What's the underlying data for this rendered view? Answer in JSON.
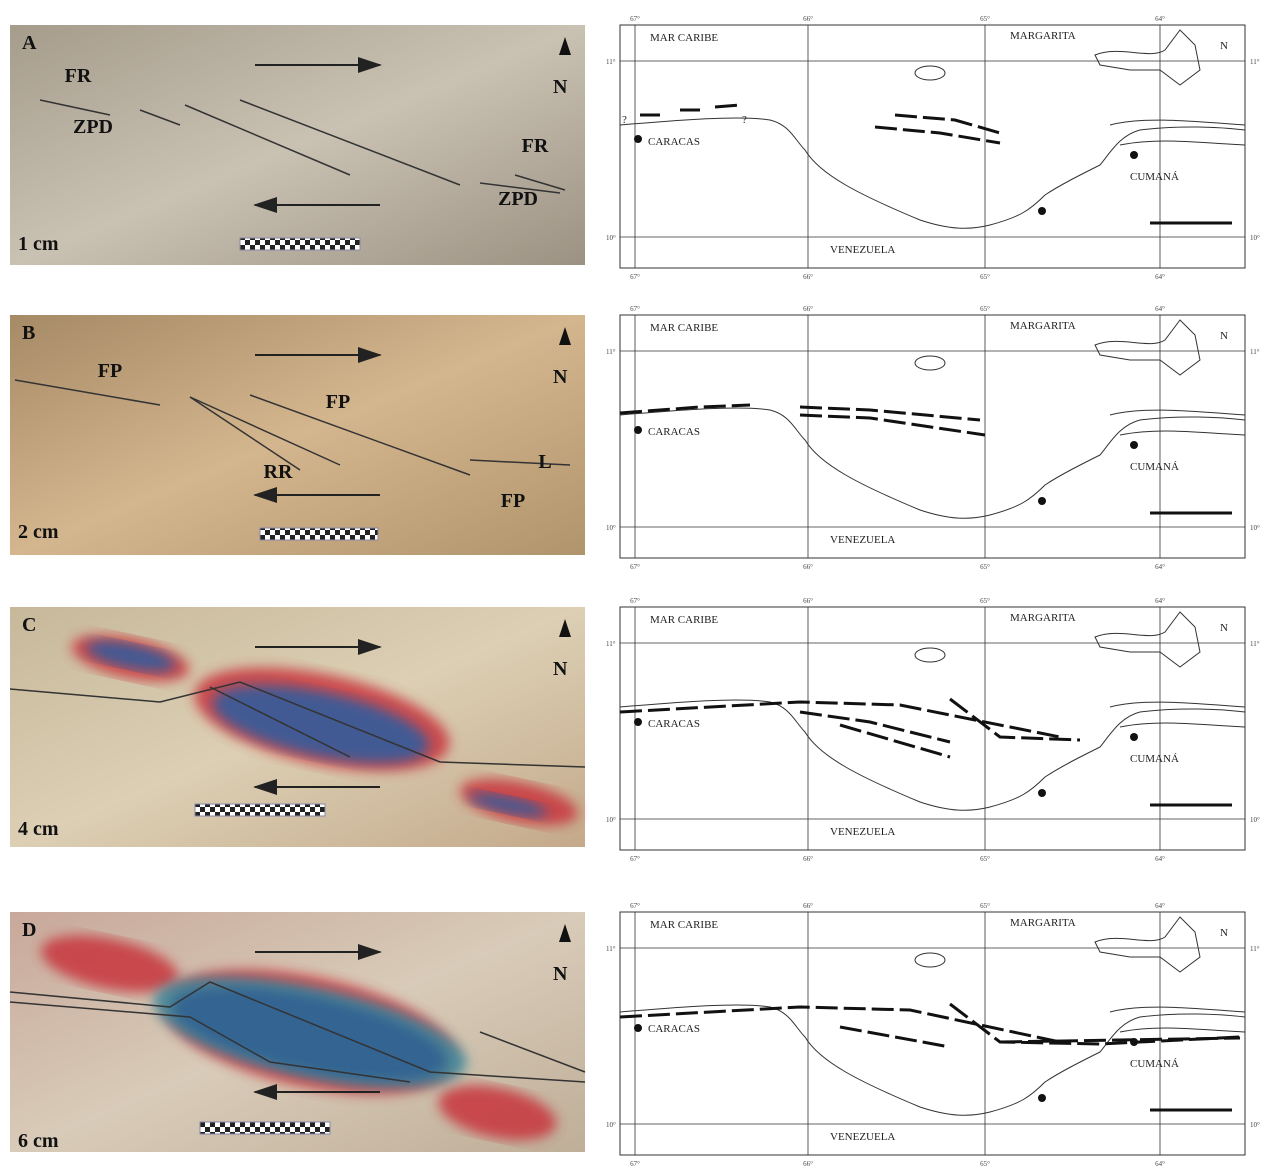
{
  "figure": {
    "panels": [
      {
        "letter": "A",
        "scale": "1 cm",
        "labels": [
          "FR",
          "ZPD",
          "FR",
          "ZPD"
        ],
        "map_notes": [
          "?",
          "?"
        ]
      },
      {
        "letter": "B",
        "scale": "2 cm",
        "labels": [
          "FP",
          "FP",
          "RR",
          "L",
          "FP"
        ]
      },
      {
        "letter": "C",
        "scale": "4 cm"
      },
      {
        "letter": "D",
        "scale": "6 cm"
      }
    ],
    "north": "N",
    "map": {
      "sea": "MAR CARIBE",
      "island": "MARGARITA",
      "city1": "CARACAS",
      "city2": "CUMANÁ",
      "country": "VENEZUELA",
      "lon": [
        "67°",
        "66°",
        "65°",
        "64°"
      ],
      "lat": [
        "11°",
        "10°"
      ]
    }
  }
}
